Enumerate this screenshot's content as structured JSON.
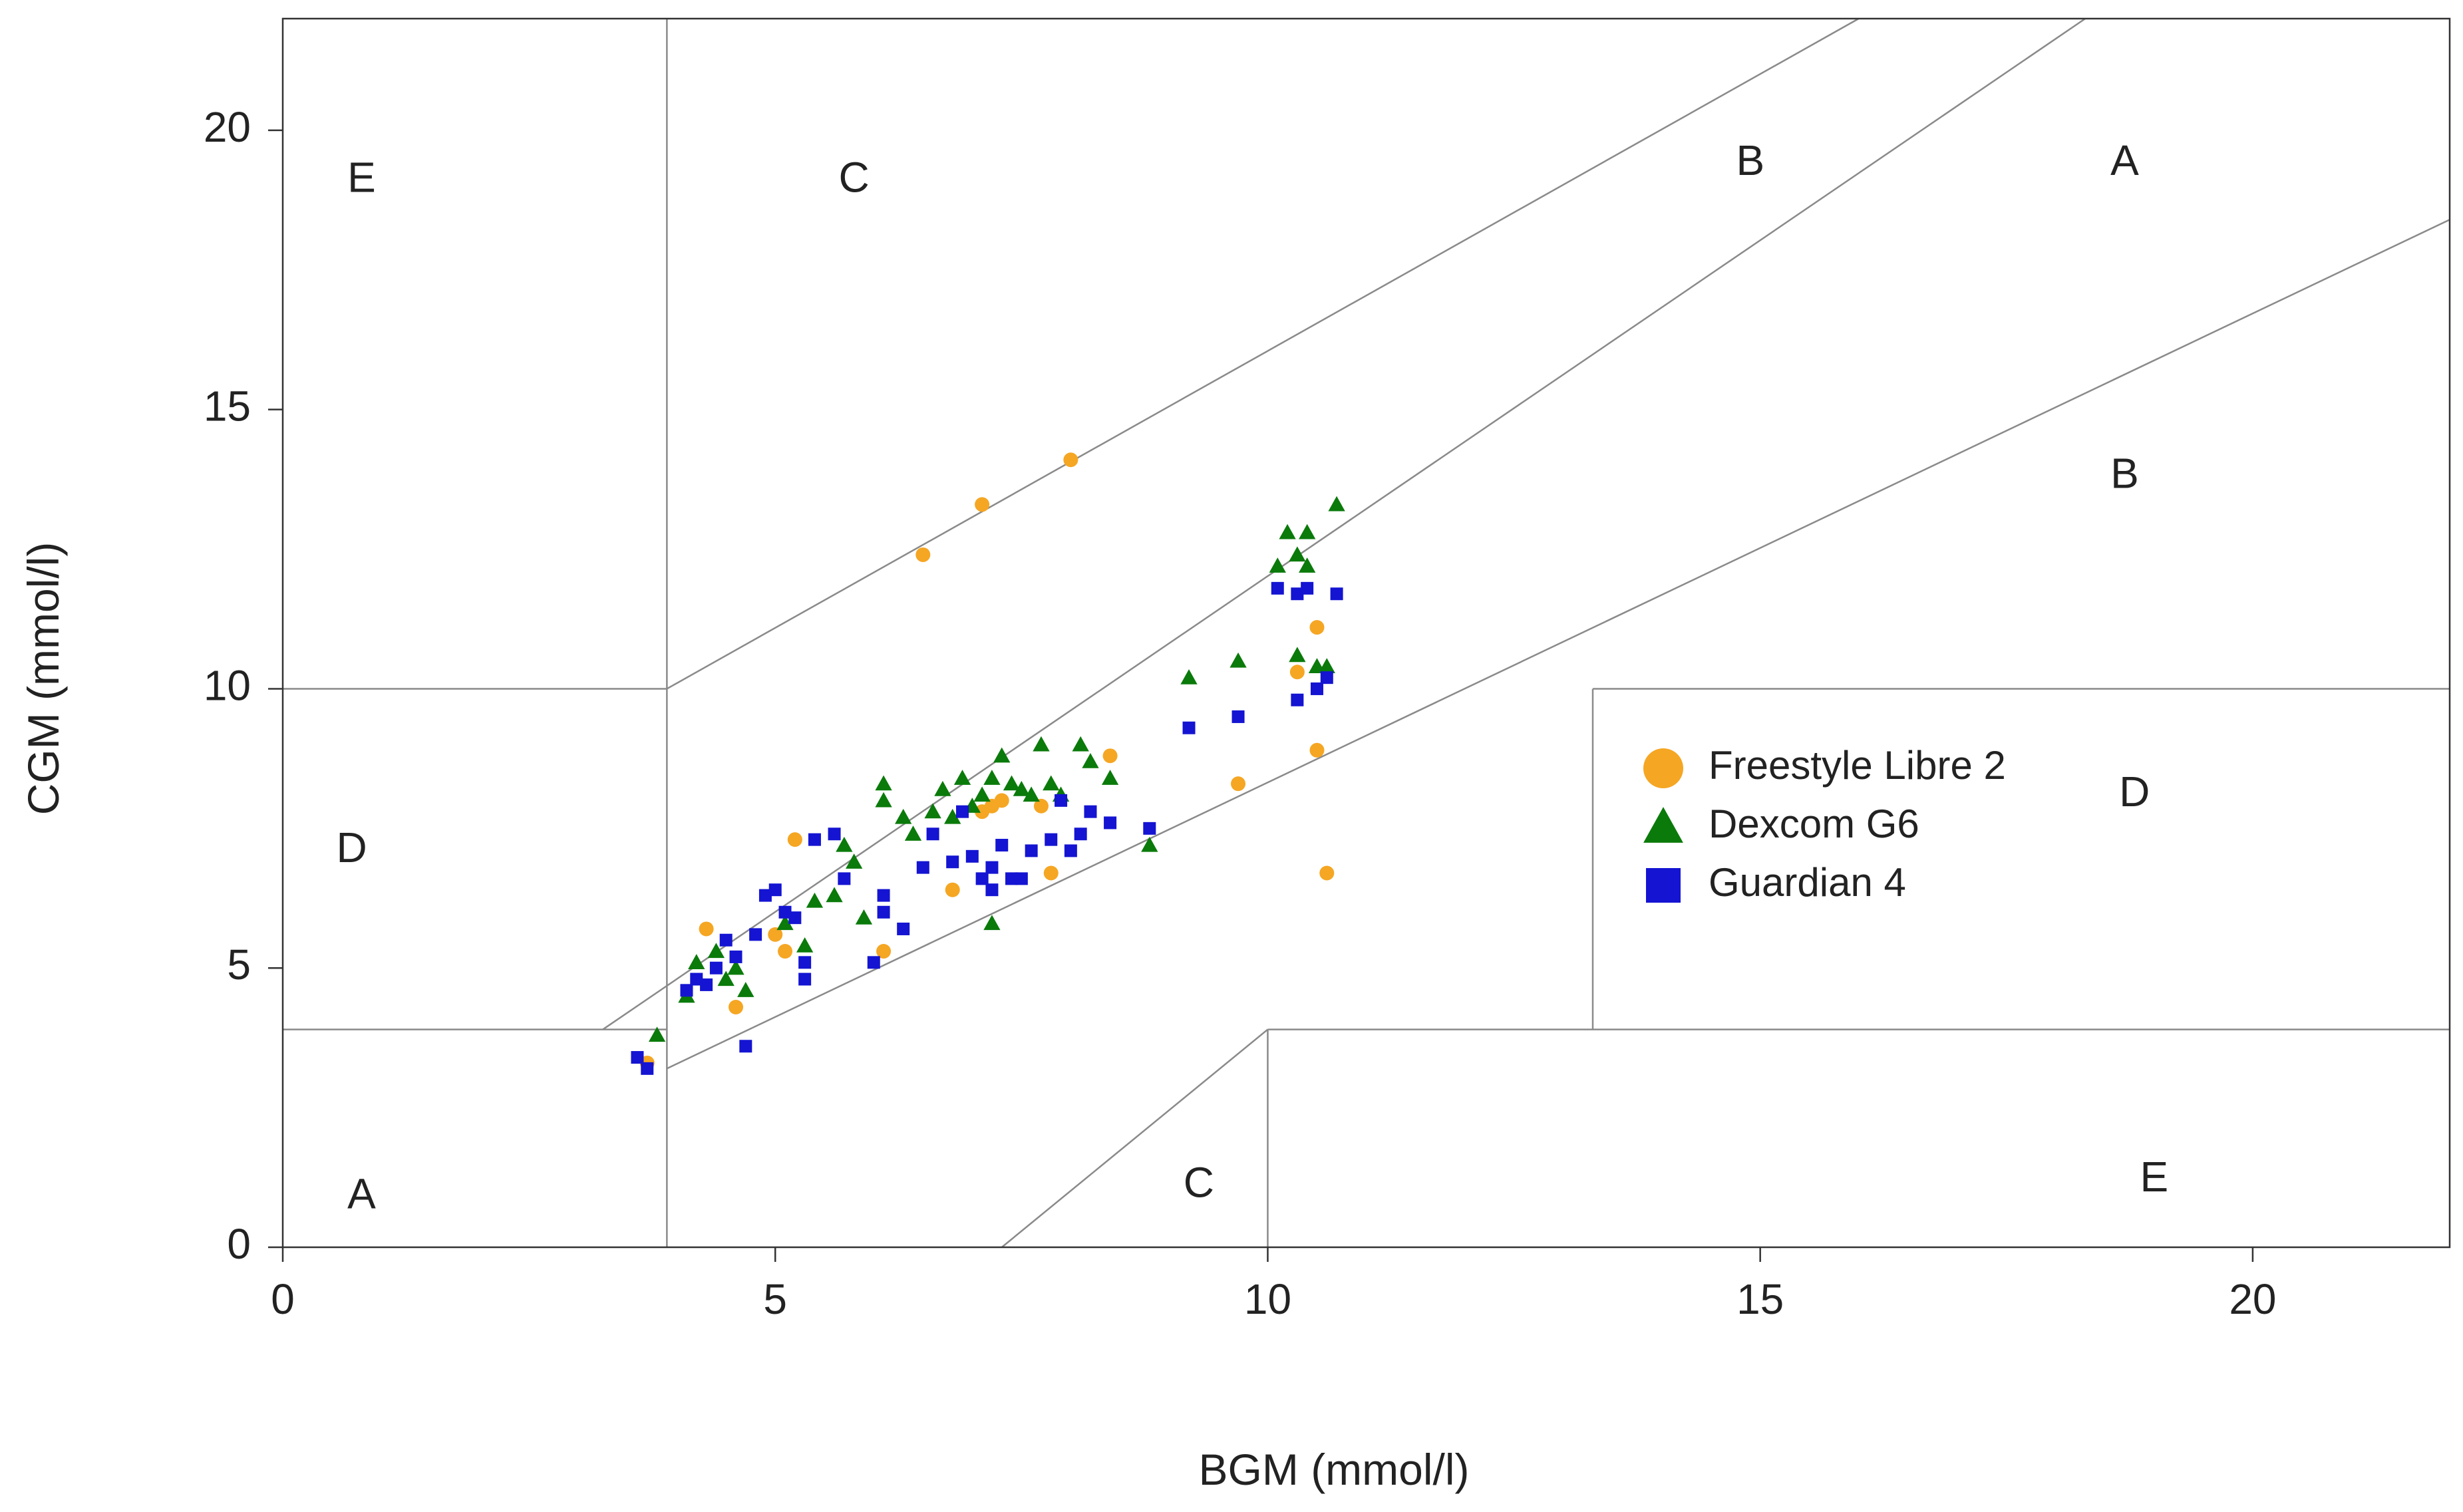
{
  "chart_data": {
    "type": "scatter",
    "title": "",
    "xlabel": "BGM (mmol/l)",
    "ylabel": "CGM (mmol/l)",
    "xlim": [
      0,
      22
    ],
    "ylim": [
      0,
      22
    ],
    "xticks": [
      0,
      5,
      10,
      15,
      20
    ],
    "yticks": [
      0,
      5,
      10,
      15,
      20
    ],
    "grid": false,
    "legend_position": "middle-right",
    "zone_lines": [
      {
        "name": "zone-line-upper-c",
        "points": [
          [
            3.9,
            10
          ],
          [
            16,
            22
          ]
        ]
      },
      {
        "name": "zone-line-a-upper",
        "points": [
          [
            3.25,
            3.9
          ],
          [
            18.3,
            22
          ]
        ]
      },
      {
        "name": "zone-line-a-lower",
        "points": [
          [
            3.9,
            3.2
          ],
          [
            22,
            18.4
          ]
        ]
      },
      {
        "name": "zone-line-lower-c",
        "points": [
          [
            7.3,
            0
          ],
          [
            10,
            3.9
          ]
        ]
      },
      {
        "name": "zone-line-x-3.9",
        "points": [
          [
            3.9,
            0
          ],
          [
            3.9,
            22
          ]
        ]
      },
      {
        "name": "zone-line-y-10-left",
        "points": [
          [
            0,
            10
          ],
          [
            3.9,
            10
          ]
        ]
      },
      {
        "name": "zone-line-y-3.9-left",
        "points": [
          [
            0,
            3.9
          ],
          [
            3.9,
            3.9
          ]
        ]
      },
      {
        "name": "zone-line-x-10",
        "points": [
          [
            10,
            0
          ],
          [
            10,
            3.9
          ]
        ]
      },
      {
        "name": "zone-line-y-3.9-right",
        "points": [
          [
            10,
            3.9
          ],
          [
            22,
            3.9
          ]
        ]
      },
      {
        "name": "zone-line-x-13.3",
        "points": [
          [
            13.3,
            3.9
          ],
          [
            13.3,
            10
          ]
        ]
      },
      {
        "name": "zone-line-y-10-right",
        "points": [
          [
            13.3,
            10
          ],
          [
            22,
            10
          ]
        ]
      }
    ],
    "zone_labels": [
      {
        "text": "E",
        "x": 0.8,
        "y": 19.1
      },
      {
        "text": "C",
        "x": 5.8,
        "y": 19.1
      },
      {
        "text": "B",
        "x": 14.9,
        "y": 19.4
      },
      {
        "text": "A",
        "x": 18.7,
        "y": 19.4
      },
      {
        "text": "B",
        "x": 18.7,
        "y": 13.8
      },
      {
        "text": "D",
        "x": 0.7,
        "y": 7.1
      },
      {
        "text": "D",
        "x": 18.8,
        "y": 8.1
      },
      {
        "text": "A",
        "x": 0.8,
        "y": 0.9
      },
      {
        "text": "C",
        "x": 9.3,
        "y": 1.1
      },
      {
        "text": "E",
        "x": 19.0,
        "y": 1.2
      }
    ],
    "series": [
      {
        "name": "Freestyle Libre 2",
        "color": "#F5A623",
        "marker": "circle",
        "points": [
          [
            6.5,
            12.4
          ],
          [
            7.1,
            13.3
          ],
          [
            8.0,
            14.1
          ],
          [
            4.3,
            5.7
          ],
          [
            4.6,
            4.3
          ],
          [
            5.0,
            5.6
          ],
          [
            5.2,
            7.3
          ],
          [
            5.1,
            5.3
          ],
          [
            6.1,
            5.3
          ],
          [
            6.8,
            6.4
          ],
          [
            7.1,
            7.8
          ],
          [
            7.2,
            7.9
          ],
          [
            7.3,
            8.0
          ],
          [
            7.7,
            7.9
          ],
          [
            7.8,
            6.7
          ],
          [
            8.4,
            8.8
          ],
          [
            9.7,
            8.3
          ],
          [
            10.3,
            10.3
          ],
          [
            10.5,
            11.1
          ],
          [
            10.5,
            8.9
          ],
          [
            10.6,
            6.7
          ],
          [
            3.7,
            3.3
          ]
        ]
      },
      {
        "name": "Dexcom G6",
        "color": "#0A7A0A",
        "marker": "triangle",
        "points": [
          [
            4.1,
            4.5
          ],
          [
            4.2,
            5.1
          ],
          [
            4.4,
            5.3
          ],
          [
            4.6,
            5.0
          ],
          [
            4.7,
            4.6
          ],
          [
            4.5,
            4.8
          ],
          [
            5.1,
            5.8
          ],
          [
            5.3,
            5.4
          ],
          [
            5.4,
            6.2
          ],
          [
            5.6,
            6.3
          ],
          [
            5.7,
            7.2
          ],
          [
            5.8,
            6.9
          ],
          [
            5.9,
            5.9
          ],
          [
            6.1,
            8.3
          ],
          [
            6.1,
            8.0
          ],
          [
            6.3,
            7.7
          ],
          [
            6.4,
            7.4
          ],
          [
            6.6,
            7.8
          ],
          [
            6.7,
            8.2
          ],
          [
            6.8,
            7.7
          ],
          [
            6.9,
            8.4
          ],
          [
            7.0,
            7.9
          ],
          [
            7.1,
            8.1
          ],
          [
            7.2,
            8.4
          ],
          [
            7.3,
            8.8
          ],
          [
            7.4,
            8.3
          ],
          [
            7.5,
            8.2
          ],
          [
            7.6,
            8.1
          ],
          [
            7.7,
            9.0
          ],
          [
            7.8,
            8.3
          ],
          [
            7.9,
            8.1
          ],
          [
            8.1,
            9.0
          ],
          [
            8.2,
            8.7
          ],
          [
            8.4,
            8.4
          ],
          [
            8.8,
            7.2
          ],
          [
            7.2,
            5.8
          ],
          [
            9.2,
            10.2
          ],
          [
            9.7,
            10.5
          ],
          [
            10.1,
            12.2
          ],
          [
            10.2,
            12.8
          ],
          [
            10.3,
            12.4
          ],
          [
            10.4,
            12.8
          ],
          [
            10.4,
            12.2
          ],
          [
            10.7,
            13.3
          ],
          [
            10.3,
            10.6
          ],
          [
            10.5,
            10.4
          ],
          [
            10.6,
            10.4
          ],
          [
            3.8,
            3.8
          ]
        ]
      },
      {
        "name": "Guardian 4",
        "color": "#1414D2",
        "marker": "square",
        "points": [
          [
            3.6,
            3.4
          ],
          [
            3.7,
            3.2
          ],
          [
            4.1,
            4.6
          ],
          [
            4.2,
            4.8
          ],
          [
            4.3,
            4.7
          ],
          [
            4.4,
            5.0
          ],
          [
            4.5,
            5.5
          ],
          [
            4.6,
            5.2
          ],
          [
            4.7,
            3.6
          ],
          [
            4.8,
            5.6
          ],
          [
            4.9,
            6.3
          ],
          [
            5.0,
            6.4
          ],
          [
            5.1,
            6.0
          ],
          [
            5.2,
            5.9
          ],
          [
            5.3,
            4.8
          ],
          [
            5.3,
            5.1
          ],
          [
            5.4,
            7.3
          ],
          [
            5.6,
            7.4
          ],
          [
            5.7,
            6.6
          ],
          [
            6.0,
            5.1
          ],
          [
            6.1,
            6.3
          ],
          [
            6.1,
            6.0
          ],
          [
            6.3,
            5.7
          ],
          [
            6.5,
            6.8
          ],
          [
            6.6,
            7.4
          ],
          [
            6.8,
            6.9
          ],
          [
            6.9,
            7.8
          ],
          [
            7.0,
            7.0
          ],
          [
            7.1,
            6.6
          ],
          [
            7.2,
            6.8
          ],
          [
            7.2,
            6.4
          ],
          [
            7.3,
            7.2
          ],
          [
            7.4,
            6.6
          ],
          [
            7.5,
            6.6
          ],
          [
            7.6,
            7.1
          ],
          [
            7.8,
            7.3
          ],
          [
            7.9,
            8.0
          ],
          [
            8.0,
            7.1
          ],
          [
            8.1,
            7.4
          ],
          [
            8.2,
            7.8
          ],
          [
            8.4,
            7.6
          ],
          [
            8.8,
            7.5
          ],
          [
            9.2,
            9.3
          ],
          [
            9.7,
            9.5
          ],
          [
            10.1,
            11.8
          ],
          [
            10.3,
            11.7
          ],
          [
            10.4,
            11.8
          ],
          [
            10.7,
            11.7
          ],
          [
            10.3,
            9.8
          ],
          [
            10.5,
            10.0
          ],
          [
            10.6,
            10.2
          ]
        ]
      }
    ]
  }
}
